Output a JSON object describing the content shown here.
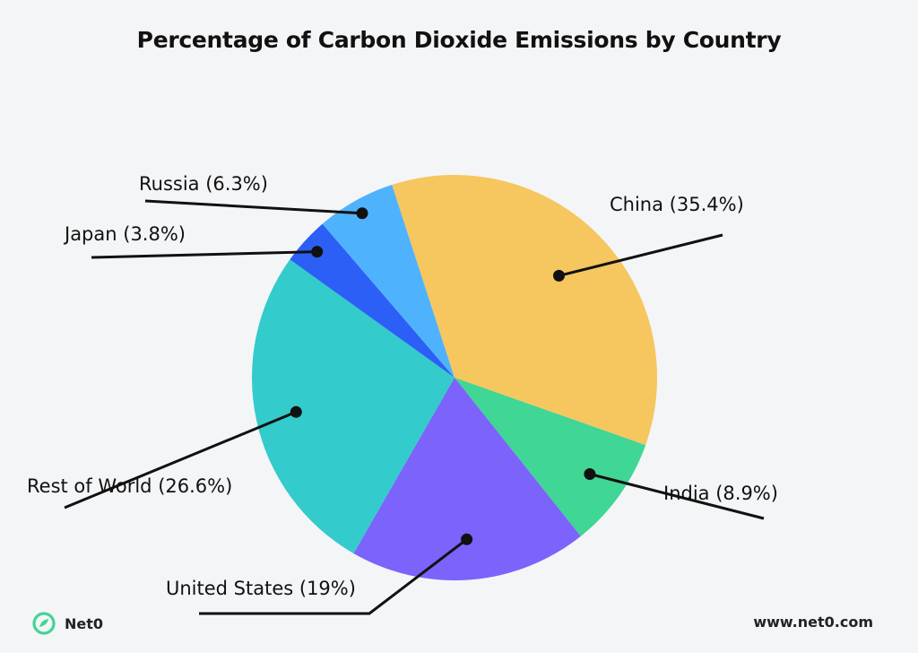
{
  "chart_data": {
    "type": "pie",
    "title": "Percentage of Carbon Dioxide Emissions by Country",
    "slices": [
      {
        "name": "China",
        "value": 35.4,
        "label": "China (35.4%)",
        "color": "#f6c65f"
      },
      {
        "name": "India",
        "value": 8.9,
        "label": "India (8.9%)",
        "color": "#3fd696"
      },
      {
        "name": "United States",
        "value": 19,
        "label": "United States (19%)",
        "color": "#7b63fb"
      },
      {
        "name": "Rest of World",
        "value": 26.6,
        "label": "Rest of World (26.6%)",
        "color": "#33cbcb"
      },
      {
        "name": "Japan",
        "value": 3.8,
        "label": "Japan (3.8%)",
        "color": "#2b5ff5"
      },
      {
        "name": "Russia",
        "value": 6.3,
        "label": "Russia (6.3%)",
        "color": "#4fb2fd"
      }
    ],
    "legend": "none"
  },
  "footer": {
    "brand": "Net0",
    "url": "www.net0.com",
    "brand_color": "#3fd696",
    "logo_icon": "net0-leaf-icon"
  }
}
